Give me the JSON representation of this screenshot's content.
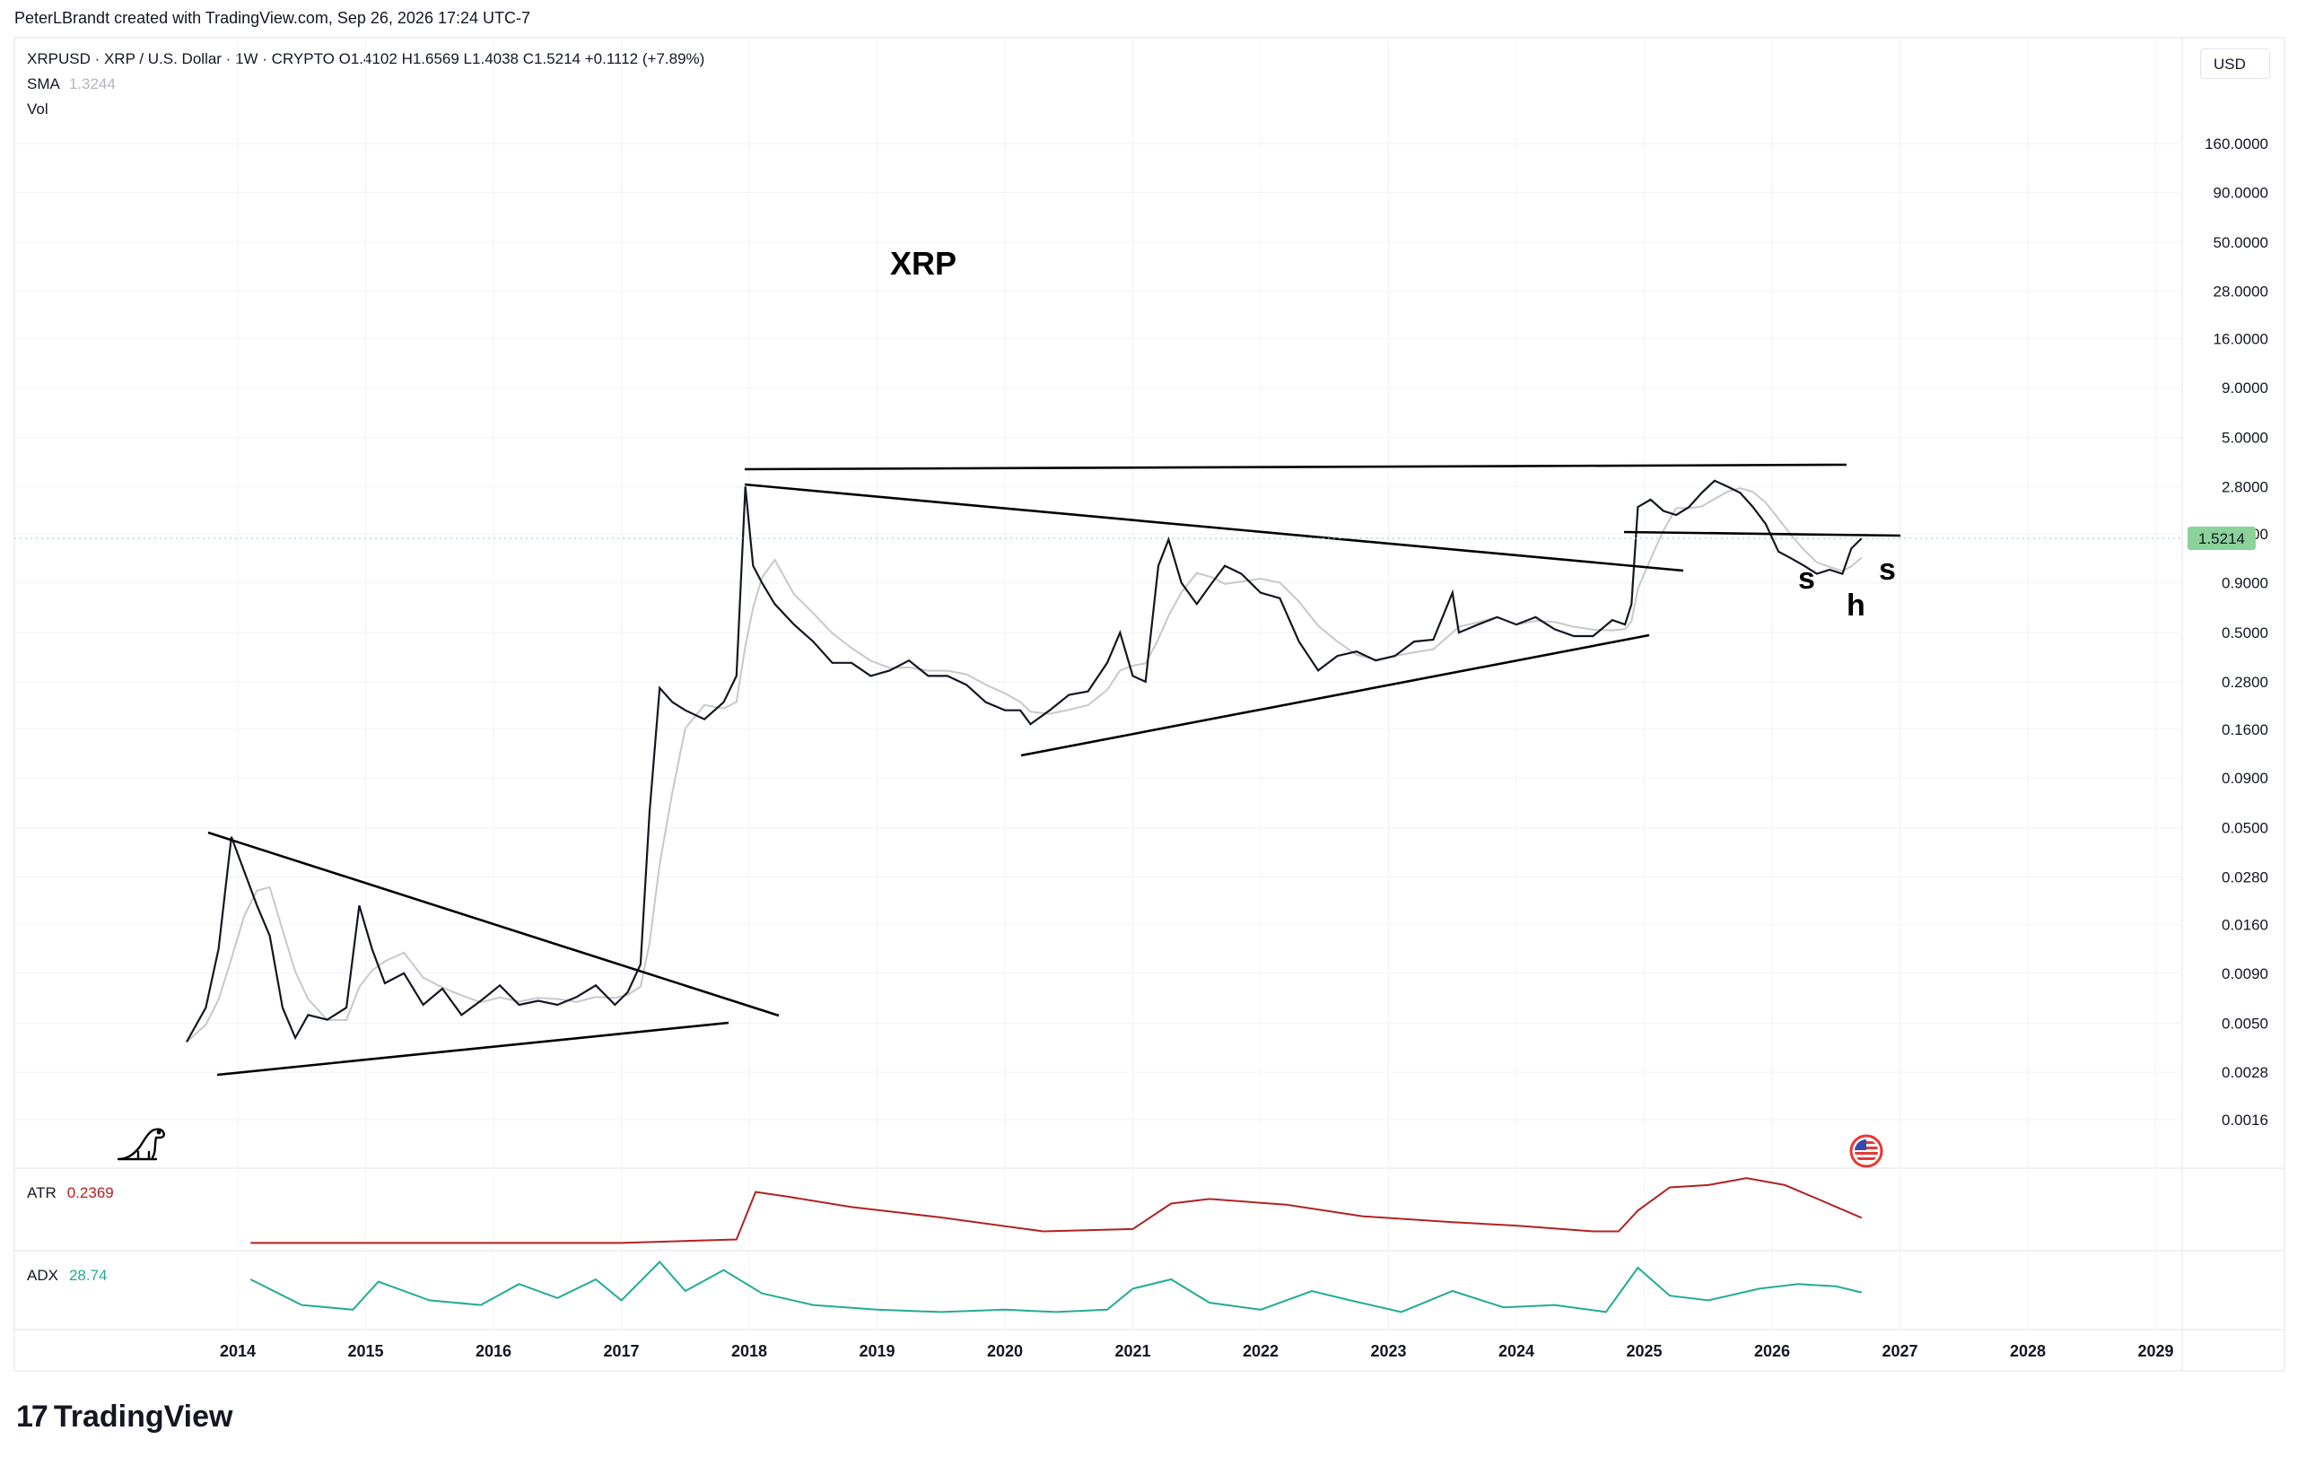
{
  "header": {
    "attribution": "PeterLBrandt created with TradingView.com, Sep 26, 2026 17:24 UTC-7",
    "symbol_line": "XRPUSD · XRP / U.S. Dollar · 1W · CRYPTO  O1.4102  H1.6569  L1.4038  C1.5214  +0.1112 (+7.89%)",
    "sma_label": "SMA",
    "sma_value": "1.3244",
    "vol_label": "Vol"
  },
  "currency_button": "USD",
  "footer": {
    "logo_mark": "17",
    "logo_text": "TradingView"
  },
  "colors": {
    "price": "#131722",
    "sma": "#bdbdbd",
    "atr": "#b22222",
    "adx": "#22ab94",
    "last_price_bg": "#8bd19a",
    "grid": "#f0f3fa",
    "border": "#e0e3eb"
  },
  "chart_data": [
    {
      "type": "line",
      "title": "XRP",
      "scale": "log",
      "price_axis_labels": [
        "160.0000",
        "90.0000",
        "50.0000",
        "28.0000",
        "16.0000",
        "9.0000",
        "5.0000",
        "2.8000",
        "1.6000",
        "0.9000",
        "0.5000",
        "0.2800",
        "0.1600",
        "0.0900",
        "0.0500",
        "0.0280",
        "0.0160",
        "0.0090",
        "0.0050",
        "0.0028",
        "0.0016"
      ],
      "price_axis_values": [
        160,
        90,
        50,
        28,
        16,
        9,
        5,
        2.8,
        1.6,
        0.9,
        0.5,
        0.28,
        0.16,
        0.09,
        0.05,
        0.028,
        0.016,
        0.009,
        0.005,
        0.0028,
        0.0016
      ],
      "last_price": "1.5214",
      "last_price_value": 1.5214,
      "time_axis_labels": [
        "2014",
        "2015",
        "2016",
        "2017",
        "2018",
        "2019",
        "2020",
        "2021",
        "2022",
        "2023",
        "2024",
        "2025",
        "2026",
        "2027",
        "2028",
        "2029"
      ],
      "time_axis_years": [
        2014,
        2015,
        2016,
        2017,
        2018,
        2019,
        2020,
        2021,
        2022,
        2023,
        2024,
        2025,
        2026,
        2027,
        2028,
        2029
      ],
      "price_series": {
        "x": [
          2013.6,
          2013.75,
          2013.85,
          2013.95,
          2014.05,
          2014.15,
          2014.25,
          2014.35,
          2014.45,
          2014.55,
          2014.7,
          2014.85,
          2014.95,
          2015.05,
          2015.15,
          2015.3,
          2015.45,
          2015.6,
          2015.75,
          2015.9,
          2016.05,
          2016.2,
          2016.35,
          2016.5,
          2016.65,
          2016.8,
          2016.95,
          2017.05,
          2017.15,
          2017.22,
          2017.3,
          2017.4,
          2017.5,
          2017.65,
          2017.8,
          2017.9,
          2017.97,
          2018.03,
          2018.1,
          2018.2,
          2018.35,
          2018.5,
          2018.65,
          2018.8,
          2018.95,
          2019.1,
          2019.25,
          2019.4,
          2019.55,
          2019.7,
          2019.85,
          2020.0,
          2020.12,
          2020.2,
          2020.35,
          2020.5,
          2020.65,
          2020.8,
          2020.9,
          2021.0,
          2021.1,
          2021.2,
          2021.28,
          2021.38,
          2021.5,
          2021.62,
          2021.72,
          2021.85,
          2022.0,
          2022.15,
          2022.3,
          2022.45,
          2022.6,
          2022.75,
          2022.9,
          2023.05,
          2023.2,
          2023.35,
          2023.5,
          2023.55,
          2023.7,
          2023.85,
          2024.0,
          2024.15,
          2024.3,
          2024.45,
          2024.6,
          2024.75,
          2024.85,
          2024.9,
          2024.95,
          2025.05,
          2025.15,
          2025.25,
          2025.35,
          2025.45,
          2025.55,
          2025.65,
          2025.75,
          2025.85,
          2025.95,
          2026.05,
          2026.15,
          2026.25,
          2026.35,
          2026.45,
          2026.55,
          2026.62,
          2026.7
        ],
        "close": [
          0.004,
          0.006,
          0.012,
          0.045,
          0.03,
          0.02,
          0.014,
          0.006,
          0.0042,
          0.0055,
          0.0052,
          0.006,
          0.02,
          0.012,
          0.008,
          0.009,
          0.0062,
          0.0075,
          0.0055,
          0.0065,
          0.0078,
          0.0062,
          0.0065,
          0.0062,
          0.0068,
          0.0078,
          0.0062,
          0.0072,
          0.01,
          0.06,
          0.26,
          0.22,
          0.2,
          0.18,
          0.22,
          0.3,
          2.8,
          1.1,
          0.9,
          0.7,
          0.55,
          0.45,
          0.35,
          0.35,
          0.3,
          0.32,
          0.36,
          0.3,
          0.3,
          0.27,
          0.22,
          0.2,
          0.2,
          0.17,
          0.2,
          0.24,
          0.25,
          0.35,
          0.5,
          0.3,
          0.28,
          1.1,
          1.5,
          0.9,
          0.7,
          0.9,
          1.1,
          1.0,
          0.8,
          0.75,
          0.45,
          0.32,
          0.38,
          0.4,
          0.36,
          0.38,
          0.45,
          0.46,
          0.8,
          0.5,
          0.55,
          0.6,
          0.55,
          0.6,
          0.52,
          0.48,
          0.48,
          0.58,
          0.55,
          0.7,
          2.2,
          2.4,
          2.1,
          2.0,
          2.2,
          2.6,
          3.0,
          2.8,
          2.6,
          2.2,
          1.8,
          1.3,
          1.2,
          1.1,
          1.0,
          1.05,
          1.0,
          1.35,
          1.52
        ]
      },
      "annotations": [
        "s",
        "h",
        "s"
      ]
    },
    {
      "type": "line",
      "legend": "ATR",
      "value": "0.2369",
      "series": {
        "x": [
          2014.1,
          2017.0,
          2017.9,
          2018.05,
          2018.3,
          2018.8,
          2019.5,
          2020.3,
          2021.0,
          2021.3,
          2021.6,
          2022.2,
          2022.8,
          2023.5,
          2024.0,
          2024.6,
          2024.8,
          2024.95,
          2025.2,
          2025.5,
          2025.8,
          2026.1,
          2026.4,
          2026.7
        ],
        "y": [
          0.02,
          0.02,
          0.05,
          0.46,
          0.42,
          0.33,
          0.24,
          0.12,
          0.14,
          0.36,
          0.4,
          0.35,
          0.25,
          0.2,
          0.17,
          0.12,
          0.12,
          0.3,
          0.5,
          0.52,
          0.58,
          0.52,
          0.38,
          0.2369
        ]
      }
    },
    {
      "type": "line",
      "legend": "ADX",
      "value": "28.74",
      "series": {
        "x": [
          2014.1,
          2014.5,
          2014.9,
          2015.1,
          2015.5,
          2015.9,
          2016.2,
          2016.5,
          2016.8,
          2017.0,
          2017.3,
          2017.5,
          2017.8,
          2018.1,
          2018.5,
          2019.0,
          2019.5,
          2020.0,
          2020.4,
          2020.8,
          2021.0,
          2021.3,
          2021.6,
          2022.0,
          2022.4,
          2022.7,
          2023.1,
          2023.5,
          2023.9,
          2024.3,
          2024.7,
          2024.95,
          2025.2,
          2025.5,
          2025.9,
          2026.2,
          2026.5,
          2026.7
        ],
        "y": [
          40,
          18,
          14,
          38,
          22,
          18,
          36,
          24,
          40,
          22,
          55,
          30,
          48,
          28,
          18,
          14,
          12,
          14,
          12,
          14,
          32,
          40,
          20,
          14,
          30,
          22,
          12,
          30,
          16,
          18,
          12,
          50,
          26,
          22,
          32,
          36,
          34,
          28.74
        ]
      }
    }
  ]
}
